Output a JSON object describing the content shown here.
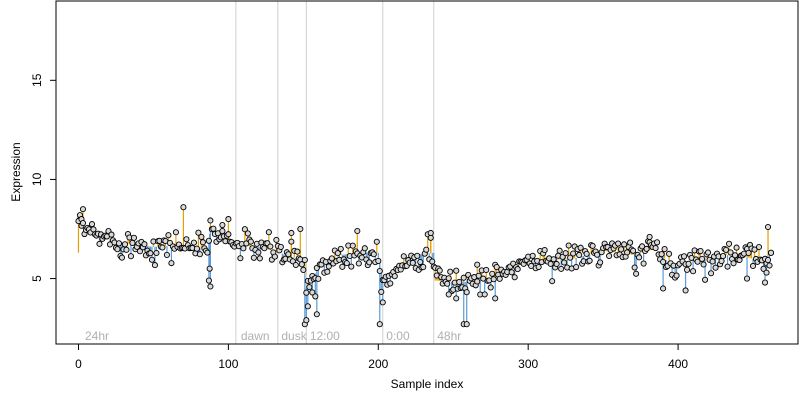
{
  "chart_data": {
    "type": "scatter",
    "title": "",
    "xlabel": "Sample index",
    "ylabel": "Expression",
    "xlim": [
      -15,
      480
    ],
    "ylim": [
      1.7,
      19
    ],
    "x_ticks": [
      0,
      100,
      200,
      300,
      400
    ],
    "y_ticks": [
      5,
      10,
      15
    ],
    "grid": false,
    "legend": "none",
    "colors": {
      "above_fitted_segment": "#e69f00",
      "below_fitted_segment": "#5b9bd5",
      "point_edge": "#000000",
      "point_fill": "#d9d9d9",
      "separator": "#d0d0d0",
      "region_label": "#b0b0b0",
      "axis": "#000000"
    },
    "region_separators": [
      105,
      133,
      152,
      203,
      237
    ],
    "region_labels": [
      {
        "x": 3,
        "text": "24hr"
      },
      {
        "x": 107,
        "text": "dawn"
      },
      {
        "x": 134,
        "text": "dusk"
      },
      {
        "x": 153,
        "text": "12:00"
      },
      {
        "x": 204,
        "text": "0:00"
      },
      {
        "x": 238,
        "text": "48hr"
      }
    ],
    "label_y": 1.9,
    "anchors": [
      [
        1,
        7.6
      ],
      [
        10,
        7.2
      ],
      [
        30,
        6.8
      ],
      [
        50,
        6.6
      ],
      [
        70,
        6.7
      ],
      [
        86,
        6.5
      ],
      [
        88,
        7.5
      ],
      [
        105,
        6.7
      ],
      [
        120,
        6.6
      ],
      [
        135,
        6.3
      ],
      [
        140,
        6.1
      ],
      [
        150,
        6.0
      ],
      [
        152,
        4.5
      ],
      [
        160,
        5.5
      ],
      [
        175,
        6.2
      ],
      [
        190,
        6.3
      ],
      [
        200,
        6.3
      ],
      [
        203,
        4.8
      ],
      [
        212,
        5.5
      ],
      [
        225,
        6.2
      ],
      [
        237,
        6.3
      ],
      [
        238,
        4.9
      ],
      [
        255,
        4.8
      ],
      [
        275,
        5.0
      ],
      [
        300,
        5.9
      ],
      [
        330,
        6.0
      ],
      [
        350,
        6.4
      ],
      [
        370,
        6.2
      ],
      [
        385,
        6.5
      ],
      [
        395,
        5.7
      ],
      [
        410,
        5.9
      ],
      [
        430,
        6.2
      ],
      [
        445,
        6.1
      ],
      [
        455,
        5.9
      ],
      [
        462,
        6.3
      ]
    ],
    "noise_sd": 0.35,
    "n_points": 462,
    "outliers": [
      [
        0,
        7.9
      ],
      [
        1,
        8.2
      ],
      [
        2,
        8.0
      ],
      [
        3,
        7.8
      ],
      [
        70,
        8.6
      ],
      [
        87,
        4.9
      ],
      [
        88,
        4.6
      ],
      [
        87.5,
        5.5
      ],
      [
        100,
        8.0
      ],
      [
        96,
        7.7
      ],
      [
        142,
        7.3
      ],
      [
        148,
        7.5
      ],
      [
        151,
        2.7
      ],
      [
        152,
        2.9
      ],
      [
        153,
        3.6
      ],
      [
        156,
        4.3
      ],
      [
        158,
        4.1
      ],
      [
        159,
        3.2
      ],
      [
        186,
        7.4
      ],
      [
        201,
        2.7
      ],
      [
        203,
        3.8
      ],
      [
        235,
        7.3
      ],
      [
        247,
        4.2
      ],
      [
        252,
        4.0
      ],
      [
        257,
        2.7
      ],
      [
        259,
        2.7
      ],
      [
        266,
        5.7
      ],
      [
        278,
        4.0
      ],
      [
        381,
        7.1
      ],
      [
        390,
        4.5
      ],
      [
        405,
        4.4
      ],
      [
        446,
        5.0
      ],
      [
        458,
        4.8
      ],
      [
        459,
        5.3
      ],
      [
        460,
        7.6
      ],
      [
        462,
        6.3
      ]
    ]
  }
}
